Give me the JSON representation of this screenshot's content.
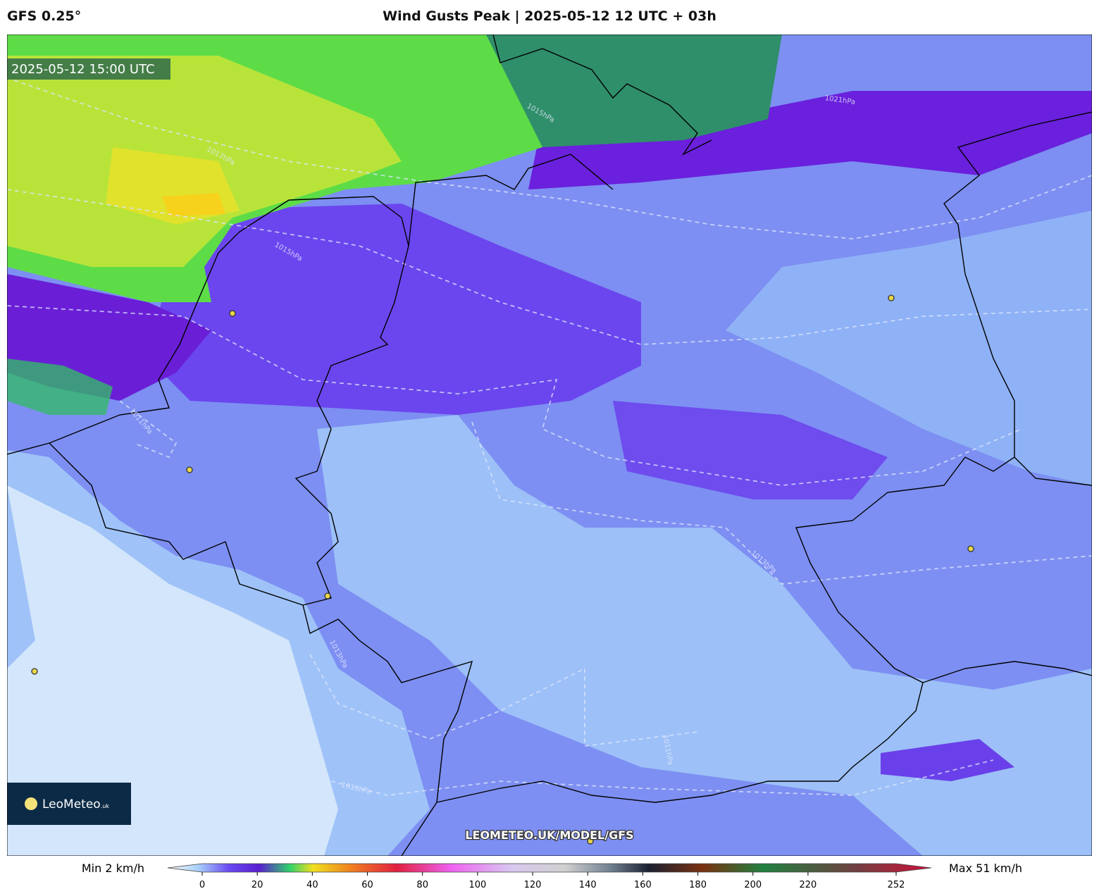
{
  "header": {
    "model": "GFS 0.25°",
    "title": "Wind Gusts Peak | 2025-05-12 12 UTC + 03h"
  },
  "map": {
    "valid_time": "2025-05-12 15:00 UTC",
    "isobar_labels": [
      "1017hPa",
      "1015hPa",
      "1021hPa",
      "1015hPa",
      "1011hPa",
      "1013hPa",
      "1013hPa",
      "1011hPa",
      "1013hPa"
    ],
    "watermark": "LEOMETEO.UK/MODEL/GFS",
    "logo": {
      "name": "LeoMeteo",
      "suffix": ".uk"
    }
  },
  "colorbar": {
    "min_label": "Min 2 km/h",
    "max_label": "Max 51 km/h",
    "lim": [
      0,
      252
    ],
    "ticks": [
      0,
      20,
      40,
      60,
      80,
      100,
      120,
      140,
      160,
      180,
      200,
      220,
      252
    ]
  }
}
